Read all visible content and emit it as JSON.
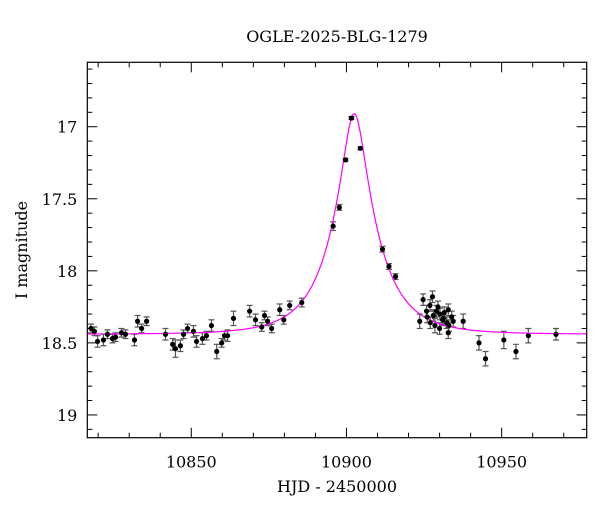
{
  "chart_data": {
    "type": "scatter",
    "title": "OGLE-2025-BLG-1279",
    "xlabel": "HJD - 2450000",
    "ylabel": "I magnitude",
    "xlim": [
      10816.5,
      10977.4
    ],
    "ylim": [
      16.553,
      19.158
    ],
    "y_inverted": true,
    "grid": false,
    "x_ticks": [
      10850,
      10900,
      10950
    ],
    "x_tick_labels": [
      "10850",
      "10900",
      "10950"
    ],
    "x_minor_step": 10,
    "y_ticks": [
      17,
      17.5,
      18,
      18.5,
      19
    ],
    "y_tick_labels": [
      "17",
      "17.5",
      "18",
      "18.5",
      "19"
    ],
    "y_minor_step": 0.1,
    "colors": {
      "points": "#000000",
      "errorbars": "#555555",
      "model": "#ff00ff",
      "frame": "#000000"
    },
    "observations": {
      "x": [
        10817.7,
        10818.8,
        10819.8,
        10821.7,
        10823.0,
        10824.6,
        10825.6,
        10827.5,
        10828.8,
        10831.7,
        10832.7,
        10834.0,
        10835.6,
        10841.7,
        10844.0,
        10844.9,
        10846.5,
        10847.5,
        10848.8,
        10850.7,
        10851.7,
        10853.6,
        10854.9,
        10856.5,
        10858.2,
        10859.8,
        10860.7,
        10861.7,
        10863.6,
        10868.8,
        10870.7,
        10872.7,
        10873.6,
        10874.6,
        10875.9,
        10878.5,
        10879.8,
        10881.7,
        10885.6,
        10895.7,
        10897.7,
        10899.7,
        10901.6,
        10904.5,
        10911.6,
        10913.7,
        10915.8,
        10923.6,
        10924.7,
        10925.8,
        10926.9,
        10927.7,
        10928.5,
        10929.0,
        10930.1,
        10931.2,
        10932.3,
        10932.8,
        10932.8,
        10933.9,
        10934.4,
        10926.0,
        10927.0,
        10929.5,
        10930.0,
        10931.5,
        10933.0,
        10928.0,
        10931.0,
        10937.6,
        10942.7,
        10944.8,
        10950.7,
        10954.6,
        10958.6,
        10967.5
      ],
      "y": [
        18.4,
        18.42,
        18.49,
        18.48,
        18.44,
        18.47,
        18.46,
        18.43,
        18.44,
        18.48,
        18.35,
        18.4,
        18.35,
        18.44,
        18.51,
        18.54,
        18.52,
        18.44,
        18.4,
        18.42,
        18.49,
        18.47,
        18.45,
        18.38,
        18.56,
        18.5,
        18.45,
        18.45,
        18.33,
        18.28,
        18.34,
        18.39,
        18.31,
        18.35,
        18.4,
        18.27,
        18.34,
        18.24,
        18.22,
        17.69,
        17.56,
        17.23,
        16.94,
        17.15,
        17.85,
        17.97,
        18.04,
        18.35,
        18.2,
        18.28,
        18.24,
        18.18,
        18.38,
        18.28,
        18.3,
        18.33,
        18.36,
        18.27,
        18.43,
        18.32,
        18.35,
        18.32,
        18.36,
        18.25,
        18.4,
        18.29,
        18.38,
        18.31,
        18.34,
        18.35,
        18.5,
        18.61,
        18.48,
        18.56,
        18.45,
        18.44
      ],
      "err": [
        0.03,
        0.03,
        0.04,
        0.04,
        0.03,
        0.03,
        0.03,
        0.03,
        0.03,
        0.04,
        0.04,
        0.03,
        0.03,
        0.04,
        0.04,
        0.06,
        0.04,
        0.03,
        0.03,
        0.04,
        0.04,
        0.04,
        0.03,
        0.04,
        0.05,
        0.03,
        0.03,
        0.04,
        0.05,
        0.04,
        0.04,
        0.03,
        0.03,
        0.03,
        0.03,
        0.04,
        0.03,
        0.03,
        0.03,
        0.03,
        0.02,
        0.01,
        0.01,
        0.01,
        0.02,
        0.02,
        0.02,
        0.05,
        0.04,
        0.04,
        0.04,
        0.04,
        0.05,
        0.04,
        0.04,
        0.04,
        0.04,
        0.04,
        0.04,
        0.04,
        0.04,
        0.04,
        0.04,
        0.04,
        0.04,
        0.04,
        0.04,
        0.04,
        0.04,
        0.05,
        0.05,
        0.05,
        0.06,
        0.05,
        0.05,
        0.04
      ]
    },
    "model": {
      "t0": 10902.5,
      "u0": 0.25,
      "tE": 14.5,
      "baseline": 18.44
    }
  }
}
